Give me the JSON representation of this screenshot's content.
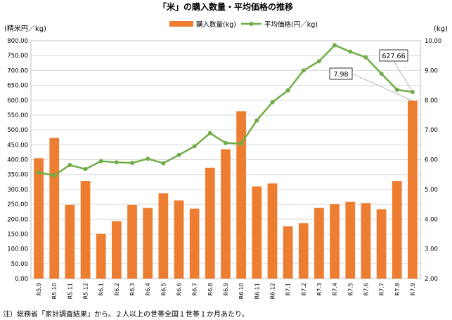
{
  "chart_data": {
    "type": "bar",
    "title": "「米」の購入数量・平均価格の推移",
    "left_axis_unit": "(精米円／kg)",
    "right_axis_unit": "(kg)",
    "left_ylim": [
      0,
      800
    ],
    "left_ticks": [
      "0.00",
      "50.00",
      "100.00",
      "150.00",
      "200.00",
      "250.00",
      "300.00",
      "350.00",
      "400.00",
      "450.00",
      "500.00",
      "550.00",
      "600.00",
      "650.00",
      "700.00",
      "750.00",
      "800.00"
    ],
    "right_ylim": [
      2,
      10
    ],
    "right_ticks": [
      "2.00",
      "3.00",
      "4.00",
      "5.00",
      "6.00",
      "7.00",
      "8.00",
      "9.00",
      "10.00"
    ],
    "grid": true,
    "legend_placement": "top",
    "categories": [
      "R5.9",
      "R5.10",
      "R5.11",
      "R5.12",
      "R6.1",
      "R6.2",
      "R6.3",
      "R6.4",
      "R6.5",
      "R6.6",
      "R6.7",
      "R6.8",
      "R6.9",
      "R6.10",
      "R6.11",
      "R6.12",
      "R7.1",
      "R7.2",
      "R7.3",
      "R7.4",
      "R7.5",
      "R7.6",
      "R7.7",
      "R7.8",
      "R7.9"
    ],
    "series": [
      {
        "name": "購入数量(kg)",
        "type": "bar",
        "axis": "right",
        "color": "#ED7D31",
        "values": [
          6.05,
          6.73,
          4.48,
          5.28,
          3.51,
          3.93,
          4.48,
          4.38,
          4.87,
          4.63,
          4.35,
          5.73,
          6.35,
          7.63,
          5.1,
          5.2,
          3.76,
          3.86,
          4.38,
          4.5,
          4.58,
          4.54,
          4.33,
          5.28,
          7.98
        ]
      },
      {
        "name": "平均価格(円／kg)",
        "type": "line",
        "axis": "left",
        "color": "#70AD47",
        "values": [
          357,
          347,
          382,
          368,
          395,
          391,
          389,
          403,
          388,
          416,
          445,
          489,
          456,
          454,
          532,
          593,
          633,
          700,
          731,
          785,
          763,
          744,
          689,
          635,
          627.66
        ]
      }
    ],
    "annotations": [
      {
        "text": "627.66",
        "target_category": "R7.9",
        "series": "平均価格(円／kg)"
      },
      {
        "text": "7.98",
        "target_category": "R7.9",
        "series": "購入数量(kg)"
      }
    ],
    "note": "注）総務省「家計調査結果」から。２人以上の世帯全国１世帯１か月あたり。"
  }
}
